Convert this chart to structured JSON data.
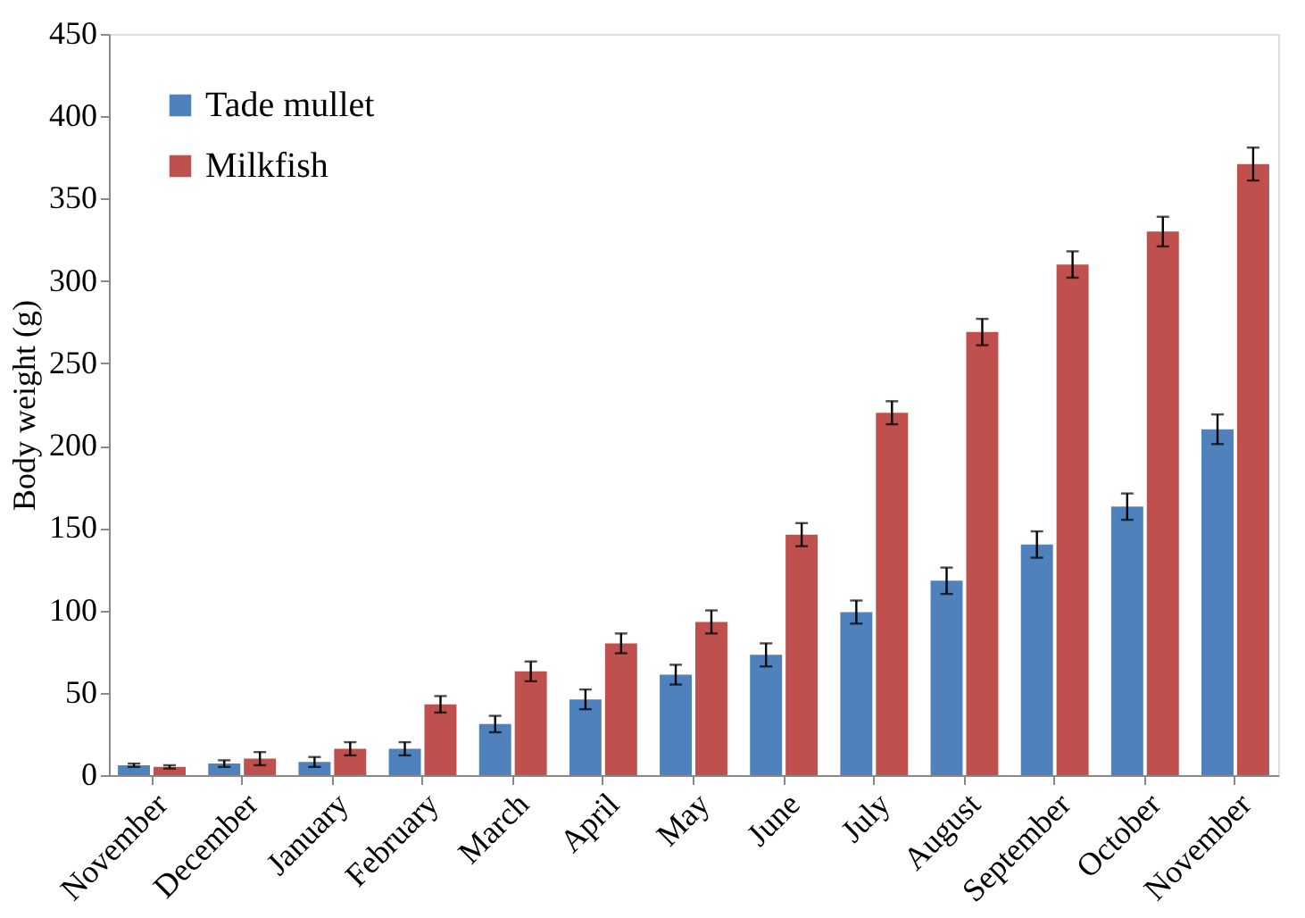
{
  "chart_data": {
    "type": "bar",
    "ylabel": "Body weight (g)",
    "categories": [
      "November",
      "December",
      "January",
      "February",
      "March",
      "April",
      "May",
      "June",
      "July",
      "August",
      "September",
      "October",
      "November"
    ],
    "series": [
      {
        "name": "Tade mullet",
        "color": "#4f81bd",
        "values": [
          6,
          7,
          8,
          16,
          31,
          46,
          61,
          73,
          99,
          118,
          140,
          163,
          210
        ],
        "errors": [
          1,
          2,
          3,
          4,
          5,
          6,
          6,
          7,
          7,
          8,
          8,
          8,
          9
        ]
      },
      {
        "name": "Milkfish",
        "color": "#c0504d",
        "values": [
          5,
          10,
          16,
          43,
          63,
          80,
          93,
          146,
          220,
          269,
          310,
          330,
          371
        ],
        "errors": [
          1,
          4,
          4,
          5,
          6,
          6,
          7,
          7,
          7,
          8,
          8,
          9,
          10
        ]
      }
    ],
    "ylim": [
      0,
      450
    ],
    "yticks": [
      0,
      50,
      100,
      150,
      200,
      250,
      300,
      350,
      400,
      450
    ],
    "grid": false,
    "legend": "top left"
  }
}
